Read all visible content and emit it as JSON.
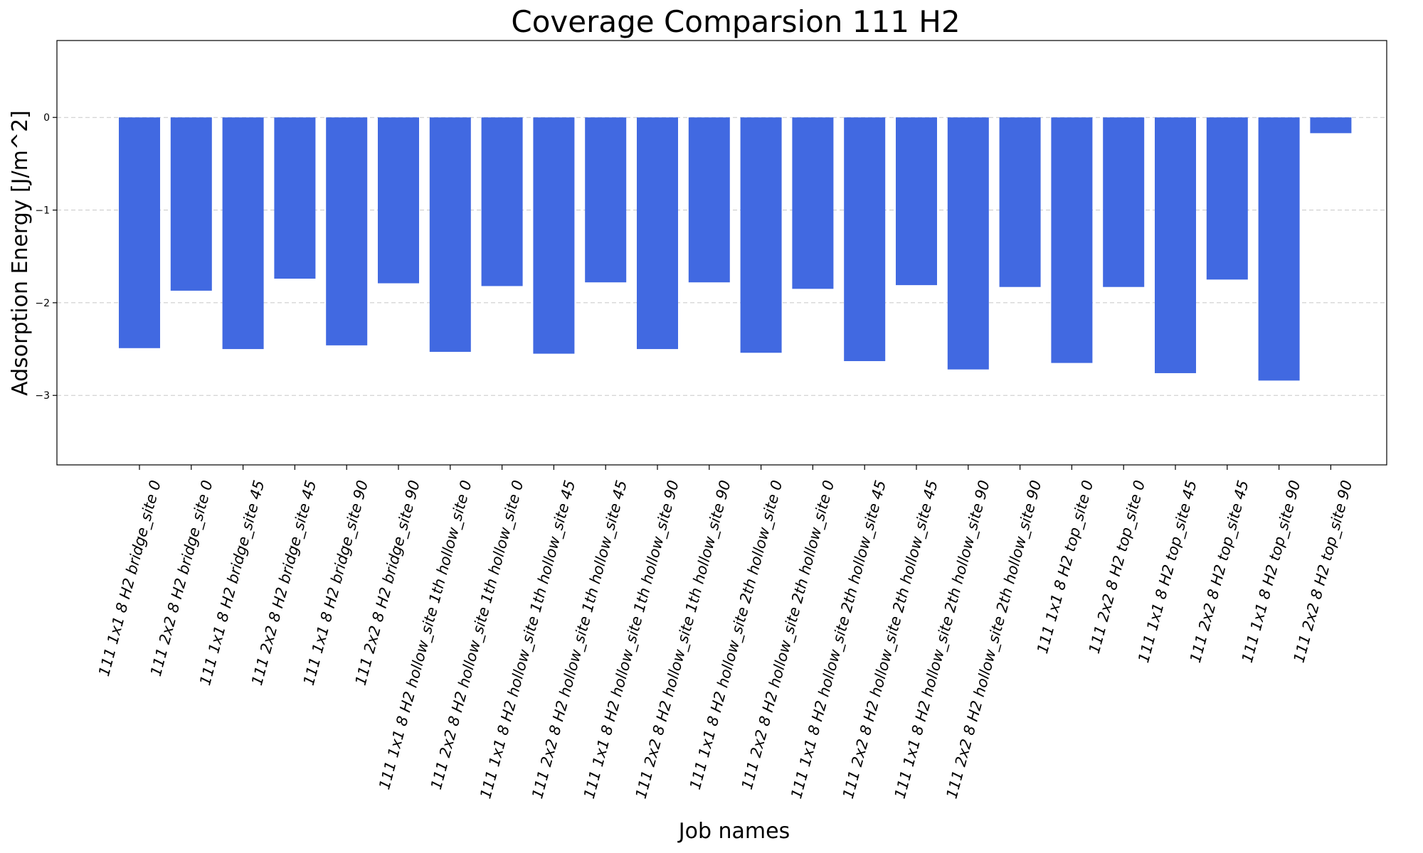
{
  "chart_data": {
    "type": "bar",
    "title": "Coverage Comparsion 111 H2",
    "xlabel": "Job names",
    "ylabel": "Adsorption Energy [J/m^2]",
    "ylim": [
      -3.75,
      0.83
    ],
    "yticks": [
      0,
      -1,
      -2,
      -3
    ],
    "ytick_labels": [
      "0",
      "−1",
      "−2",
      "−3"
    ],
    "grid": "horizontal dashed",
    "bar_color": "#4169E1",
    "categories": [
      "111 1x1 8 H2 bridge_site 0",
      "111 2x2 8 H2 bridge_site 0",
      "111 1x1 8 H2 bridge_site 45",
      "111 2x2 8 H2 bridge_site 45",
      "111 1x1 8 H2 bridge_site 90",
      "111 2x2 8 H2 bridge_site 90",
      "111 1x1 8 H2 hollow_site 1th hollow_site 0",
      "111 2x2 8 H2 hollow_site 1th hollow_site 0",
      "111 1x1 8 H2 hollow_site 1th hollow_site 45",
      "111 2x2 8 H2 hollow_site 1th hollow_site 45",
      "111 1x1 8 H2 hollow_site 1th hollow_site 90",
      "111 2x2 8 H2 hollow_site 1th hollow_site 90",
      "111 1x1 8 H2 hollow_site 2th hollow_site 0",
      "111 2x2 8 H2 hollow_site 2th hollow_site 0",
      "111 1x1 8 H2 hollow_site 2th hollow_site 45",
      "111 2x2 8 H2 hollow_site 2th hollow_site 45",
      "111 1x1 8 H2 hollow_site 2th hollow_site 90",
      "111 2x2 8 H2 hollow_site 2th hollow_site 90",
      "111 1x1 8 H2 top_site 0",
      "111 2x2 8 H2 top_site 0",
      "111 1x1 8 H2 top_site 45",
      "111 2x2 8 H2 top_site 45",
      "111 1x1 8 H2 top_site 90",
      "111 2x2 8 H2 top_site 90"
    ],
    "values": [
      -2.49,
      -1.87,
      -2.5,
      -1.74,
      -2.46,
      -1.79,
      -2.53,
      -1.82,
      -2.55,
      -1.78,
      -2.5,
      -1.78,
      -2.54,
      -1.85,
      -2.63,
      -1.81,
      -2.72,
      -1.83,
      -2.65,
      -1.83,
      -2.76,
      -1.75,
      -2.84,
      -0.17
    ]
  }
}
